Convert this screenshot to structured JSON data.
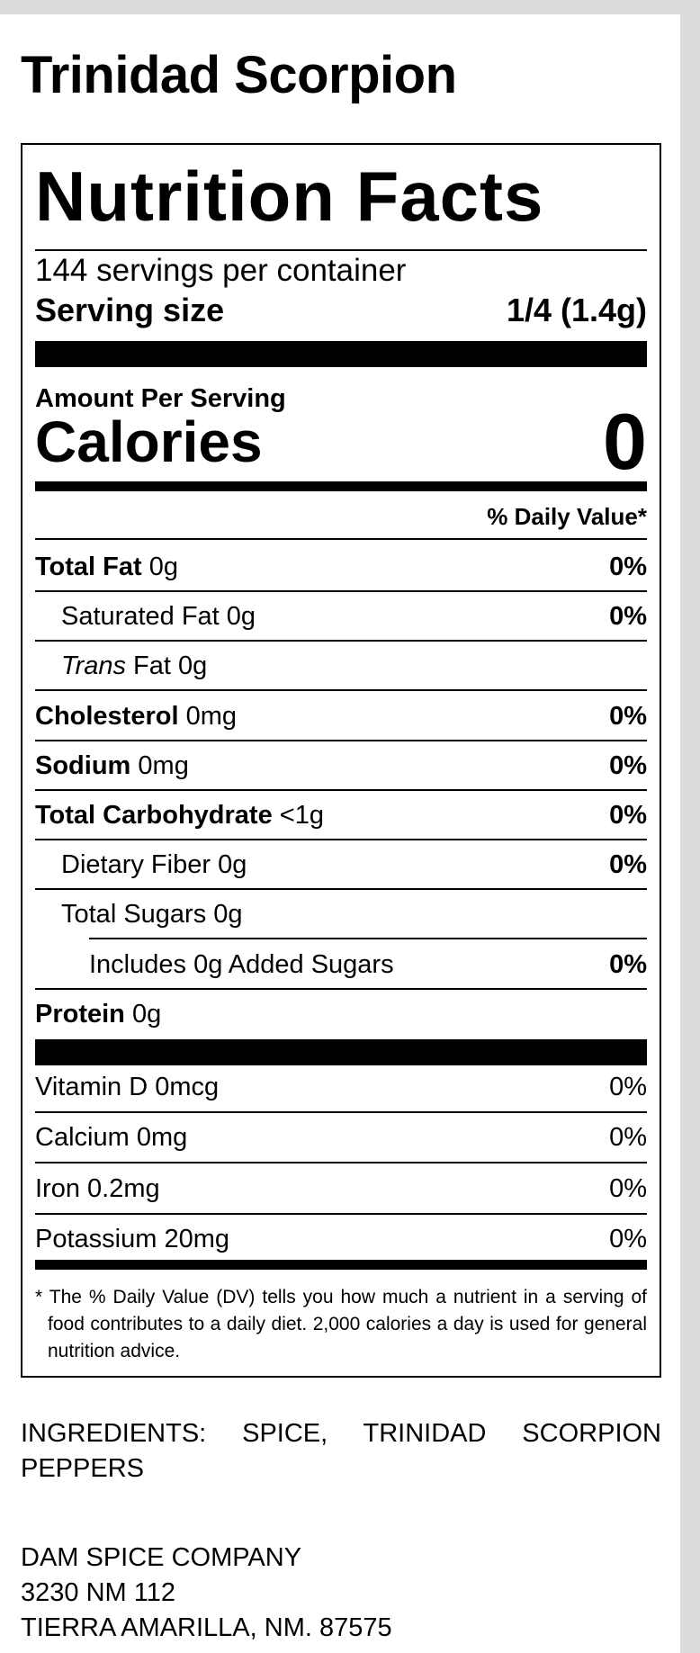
{
  "title": "Trinidad Scorpion",
  "label": {
    "heading": "Nutrition Facts",
    "servings": "144 servings per container",
    "serving_size": {
      "label": "Serving size",
      "value": "1/4 (1.4g)"
    },
    "amount_per_serving": "Amount Per Serving",
    "calories": {
      "label": "Calories",
      "value": 0
    },
    "daily_value_header": "% Daily Value*",
    "nutrients": [
      {
        "name": "Total Fat",
        "amount": "0g",
        "dv": "0%",
        "bold": true,
        "indent": 0
      },
      {
        "name": "Saturated Fat",
        "amount": "0g",
        "dv": "0%",
        "bold": false,
        "indent": 1
      },
      {
        "name_italic": "Trans",
        "name": "Fat",
        "amount": "0g",
        "bold": false,
        "indent": 1
      },
      {
        "name": "Cholesterol",
        "amount": "0mg",
        "dv": "0%",
        "bold": true,
        "indent": 0
      },
      {
        "name": "Sodium",
        "amount": "0mg",
        "dv": "0%",
        "bold": true,
        "indent": 0
      },
      {
        "name": "Total Carbohydrate",
        "amount": "<1g",
        "dv": "0%",
        "bold": true,
        "indent": 0
      },
      {
        "name": "Dietary Fiber",
        "amount": "0g",
        "dv": "0%",
        "bold": false,
        "indent": 1
      },
      {
        "name": "Total Sugars",
        "amount": "0g",
        "bold": false,
        "indent": 1
      },
      {
        "name": "Includes 0g Added Sugars",
        "dv": "0%",
        "bold": false,
        "indent": 2
      },
      {
        "name": "Protein",
        "amount": "0g",
        "bold": true,
        "indent": 0
      }
    ],
    "vitamins": [
      {
        "name": "Vitamin D",
        "amount": "0mcg",
        "dv": "0%"
      },
      {
        "name": "Calcium",
        "amount": "0mg",
        "dv": "0%"
      },
      {
        "name": "Iron",
        "amount": "0.2mg",
        "dv": "0%"
      },
      {
        "name": "Potassium",
        "amount": "20mg",
        "dv": "0%"
      }
    ],
    "footnote": {
      "marker": "*",
      "text": "The % Daily Value (DV) tells you how much a nutrient in a serving of food contributes to a daily diet. 2,000 calories a day is used for general nutrition advice."
    }
  },
  "ingredients": "INGREDIENTS: SPICE, TRINIDAD SCORPION PEPPERS",
  "company": [
    "DAM SPICE COMPANY",
    "3230 NM 112",
    "TIERRA AMARILLA, NM. 87575"
  ]
}
